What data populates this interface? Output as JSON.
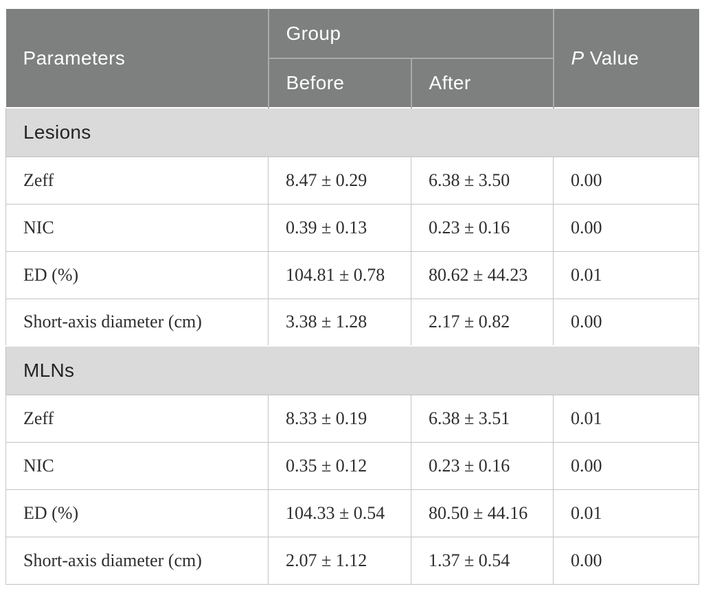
{
  "table": {
    "header": {
      "parameters": "Parameters",
      "group": "Group",
      "before": "Before",
      "after": "After",
      "p_italic": "P",
      "p_rest": " Value"
    },
    "sections": [
      {
        "title": "Lesions",
        "rows": [
          {
            "parameter": "Zeff",
            "before": "8.47 ± 0.29",
            "after": "6.38 ± 3.50",
            "p_value": "0.00"
          },
          {
            "parameter": "NIC",
            "before": "0.39 ± 0.13",
            "after": "0.23 ± 0.16",
            "p_value": "0.00"
          },
          {
            "parameter": "ED (%)",
            "before": "104.81 ± 0.78",
            "after": "80.62 ± 44.23",
            "p_value": "0.01"
          },
          {
            "parameter": "Short-axis diameter (cm)",
            "before": "3.38 ± 1.28",
            "after": "2.17 ± 0.82",
            "p_value": "0.00"
          }
        ]
      },
      {
        "title": "MLNs",
        "rows": [
          {
            "parameter": "Zeff",
            "before": "8.33 ± 0.19",
            "after": "6.38 ± 3.51",
            "p_value": "0.01"
          },
          {
            "parameter": "NIC",
            "before": "0.35 ± 0.12",
            "after": "0.23 ± 0.16",
            "p_value": "0.00"
          },
          {
            "parameter": "ED (%)",
            "before": "104.33 ± 0.54",
            "after": "80.50 ± 44.16",
            "p_value": "0.01"
          },
          {
            "parameter": "Short-axis diameter (cm)",
            "before": "2.07 ± 1.12",
            "after": "1.37 ± 0.54",
            "p_value": "0.00"
          }
        ]
      }
    ],
    "colors": {
      "header_bg": "#7e7f7f",
      "header_text": "#ffffff",
      "section_band_bg": "#dadada",
      "row_bg": "#ffffff",
      "data_border": "#c3c3c3",
      "header_border": "#a9aaaa",
      "data_text": "#2e2e2e"
    }
  }
}
